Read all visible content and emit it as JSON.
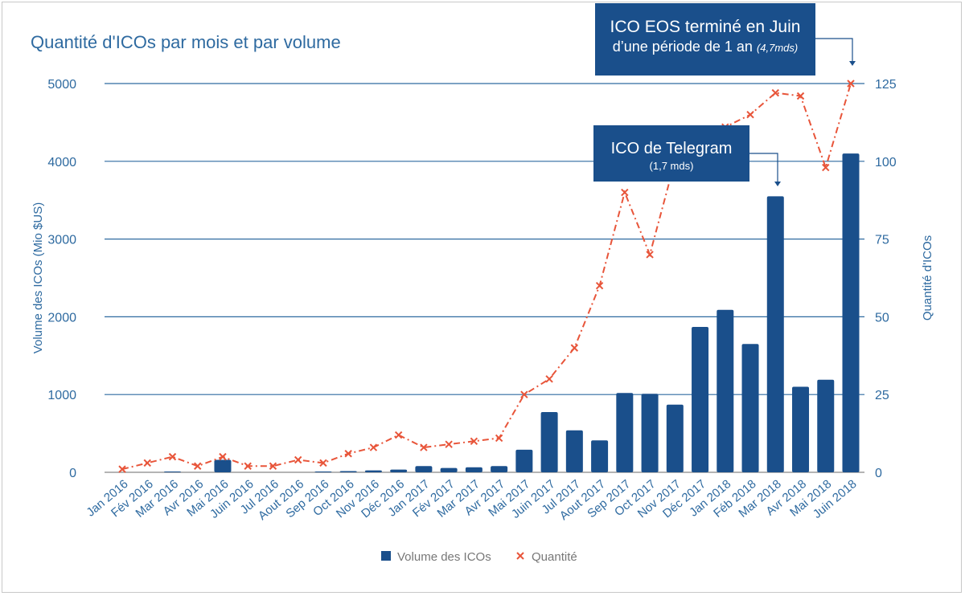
{
  "chart_data": {
    "type": "bar+line",
    "title": "Quantité d'ICOs par mois et par volume",
    "ylabel": "Volume des ICOs (Mio $US)",
    "y2label": "Quantité d'ICOs",
    "ylim": [
      0,
      5000
    ],
    "y2lim": [
      0,
      125
    ],
    "yticks": [
      0,
      1000,
      2000,
      3000,
      4000,
      5000
    ],
    "y2ticks": [
      0,
      25,
      50,
      75,
      100,
      125
    ],
    "grid": true,
    "legend": "bottom",
    "categories": [
      "Jan 2016",
      "Fév 2016",
      "Mar 2016",
      "Avr 2016",
      "Mai 2016",
      "Juin 2016",
      "Jul 2016",
      "Aout 2016",
      "Sep 2016",
      "Oct 2016",
      "Nov 2016",
      "Déc 2016",
      "Jan 2017",
      "Fév 2017",
      "Mar 2017",
      "Avr 2017",
      "Mai 2017",
      "Juin 2017",
      "Jul 2017",
      "Aout 2017",
      "Sep 2017",
      "Oct 2017",
      "Nov 2017",
      "Déc 2017",
      "Jan 2018",
      "Féb 2018",
      "Mar 2018",
      "Avr 2018",
      "Mai 2018",
      "Juin 2018"
    ],
    "series": [
      {
        "name": "Volume des ICOs",
        "type": "bar",
        "axis": "left",
        "color": "#1a4f8b",
        "values": [
          0,
          0,
          10,
          0,
          160,
          0,
          0,
          0,
          10,
          15,
          25,
          35,
          80,
          55,
          65,
          80,
          290,
          775,
          540,
          410,
          1020,
          1010,
          870,
          1870,
          2090,
          1650,
          3550,
          1100,
          1190,
          4100
        ]
      },
      {
        "name": "Quantité",
        "type": "line",
        "axis": "right",
        "color": "#e8553a",
        "values": [
          1,
          3,
          5,
          2,
          5,
          2,
          2,
          4,
          3,
          6,
          8,
          12,
          8,
          9,
          10,
          11,
          25,
          30,
          40,
          60,
          90,
          70,
          100,
          106,
          111,
          115,
          122,
          121,
          98,
          125
        ]
      }
    ],
    "annotations": [
      {
        "line1": "ICO EOS terminé en Juin",
        "line2": "d’une période de 1 an",
        "note": "(4,7mds)",
        "target": "Juin 2018"
      },
      {
        "line1": "ICO de Telegram",
        "line2": "(1,7 mds)",
        "target": "Mar 2018"
      }
    ]
  }
}
